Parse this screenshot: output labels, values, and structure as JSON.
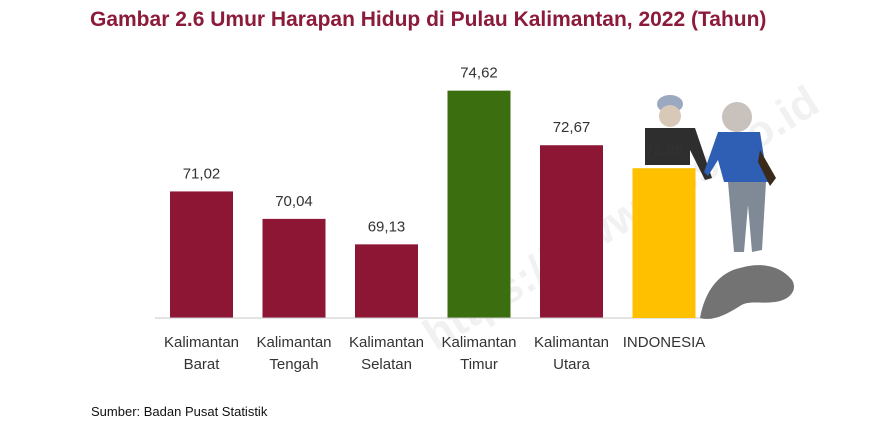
{
  "title": "Gambar 2.6 Umur Harapan Hidup di Pulau Kalimantan, 2022 (Tahun)",
  "source": "Sumber: Badan Pusat Statistik",
  "watermark": "https://www.bps.go.id",
  "colors": {
    "title": "#8c1a3a",
    "default_bar": "#8c1633",
    "highlight_green": "#3b6e0e",
    "highlight_gold": "#ffc000"
  },
  "chart_data": {
    "type": "bar",
    "title": "Gambar 2.6 Umur Harapan Hidup di Pulau Kalimantan, 2022 (Tahun)",
    "xlabel": "",
    "ylabel": "",
    "categories": [
      [
        "Kalimantan",
        "Barat"
      ],
      [
        "Kalimantan",
        "Tengah"
      ],
      [
        "Kalimantan",
        "Selatan"
      ],
      [
        "Kalimantan",
        "Timur"
      ],
      [
        "Kalimantan",
        "Utara"
      ],
      [
        "INDONESIA"
      ]
    ],
    "values": [
      71.02,
      70.04,
      69.13,
      74.62,
      72.67,
      71.85
    ],
    "value_labels": [
      "71,02",
      "70,04",
      "69,13",
      "74,62",
      "72,67",
      "71,85"
    ],
    "bar_colors": [
      "#8c1633",
      "#8c1633",
      "#8c1633",
      "#3b6e0e",
      "#8c1633",
      "#ffc000"
    ],
    "ylim": [
      66.5,
      75
    ],
    "grid": false,
    "legend": "none"
  }
}
